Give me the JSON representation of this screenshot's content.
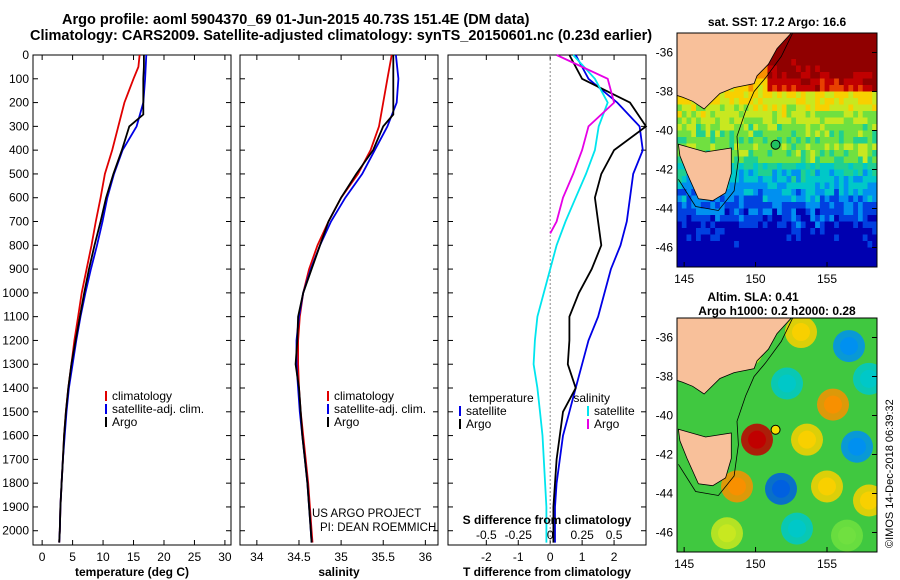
{
  "header": {
    "line1": "Argo profile: aoml 5904370_69 01-Jun-2015 40.73S 151.4E (DM data)",
    "line2": "Climatology: CARS2009. Satellite-adjusted climatology: synTS_20150601.nc (0.23d earlier)"
  },
  "colors": {
    "climatology": "#e00000",
    "satellite": "#0000e6",
    "argo": "#000000",
    "sat_salinity": "#00e5ee",
    "argo_salinity": "#e600e6",
    "land": "#f8c09a"
  },
  "chart_data": [
    {
      "id": "temperature",
      "type": "line",
      "xlabel": "temperature (deg C)",
      "ylabel": "",
      "xlim": [
        -1.5,
        31
      ],
      "ylim": [
        2060,
        0
      ],
      "xticks": [
        0,
        5,
        10,
        15,
        20,
        25,
        30
      ],
      "yticks": [
        0,
        100,
        200,
        300,
        400,
        500,
        600,
        700,
        800,
        900,
        1000,
        1100,
        1200,
        1300,
        1400,
        1500,
        1600,
        1700,
        1800,
        1900,
        2000
      ],
      "legend": {
        "placement": "center-right",
        "entries": [
          "climatology",
          "satellite-adj. clim.",
          "Argo"
        ]
      },
      "series": [
        {
          "name": "climatology",
          "color": "#e00000",
          "x": [
            16.0,
            15.8,
            15.0,
            13.5,
            12.5,
            11.5,
            10.3,
            9.6,
            8.8,
            8.1,
            7.3,
            6.5,
            5.9,
            5.3,
            4.8,
            4.3,
            3.9,
            3.6,
            3.4,
            3.2,
            3.0,
            2.9,
            2.8
          ],
          "y": [
            0,
            50,
            100,
            200,
            300,
            400,
            500,
            600,
            700,
            800,
            900,
            1000,
            1100,
            1200,
            1300,
            1400,
            1500,
            1600,
            1700,
            1800,
            1900,
            2000,
            2050
          ]
        },
        {
          "name": "satellite-adj. clim.",
          "color": "#0000e6",
          "x": [
            17.1,
            17.0,
            16.9,
            16.6,
            15.5,
            13.2,
            11.8,
            10.7,
            9.9,
            9.0,
            8.0,
            7.1,
            6.3,
            5.6,
            5.0,
            4.4,
            4.0,
            3.7,
            3.4,
            3.2,
            3.0,
            2.9,
            2.8
          ],
          "y": [
            0,
            50,
            100,
            200,
            300,
            400,
            500,
            600,
            700,
            800,
            900,
            1000,
            1100,
            1200,
            1300,
            1400,
            1500,
            1600,
            1700,
            1800,
            1900,
            2000,
            2050
          ]
        },
        {
          "name": "Argo",
          "color": "#000000",
          "x": [
            16.7,
            16.7,
            16.6,
            16.6,
            14.3,
            13.1,
            11.7,
            10.5,
            9.6,
            8.6,
            7.7,
            6.9,
            6.2,
            5.5,
            4.8,
            4.3,
            3.9,
            3.6,
            3.4,
            3.2,
            3.0,
            2.9,
            2.8
          ],
          "y": [
            0,
            50,
            100,
            250,
            300,
            400,
            500,
            600,
            700,
            800,
            900,
            1000,
            1100,
            1200,
            1300,
            1400,
            1500,
            1600,
            1700,
            1800,
            1900,
            2000,
            2050
          ]
        }
      ]
    },
    {
      "id": "salinity",
      "type": "line",
      "xlabel": "salinity",
      "ylabel": "",
      "xlim": [
        33.8,
        36.15
      ],
      "ylim": [
        2060,
        0
      ],
      "xticks": [
        34,
        34.5,
        35,
        35.5,
        36
      ],
      "legend": {
        "placement": "center-right",
        "entries": [
          "climatology",
          "satellite-adj. clim.",
          "Argo"
        ]
      },
      "annotations": [
        "US ARGO PROJECT",
        "PI: DEAN ROEMMICH"
      ],
      "series": [
        {
          "name": "climatology",
          "color": "#e00000",
          "x": [
            35.6,
            35.55,
            35.5,
            35.45,
            35.35,
            35.2,
            35.0,
            34.85,
            34.72,
            34.62,
            34.55,
            34.51,
            34.49,
            34.49,
            34.5,
            34.52,
            34.55,
            34.58,
            34.61,
            34.63,
            34.65,
            34.66
          ],
          "y": [
            0,
            100,
            200,
            300,
            400,
            500,
            600,
            700,
            800,
            900,
            1000,
            1100,
            1200,
            1300,
            1400,
            1500,
            1600,
            1700,
            1800,
            1900,
            2000,
            2050
          ]
        },
        {
          "name": "satellite-adj. clim.",
          "color": "#0000e6",
          "x": [
            35.65,
            35.68,
            35.66,
            35.55,
            35.4,
            35.25,
            35.05,
            34.88,
            34.75,
            34.64,
            34.55,
            34.5,
            34.47,
            34.47,
            34.49,
            34.51,
            34.54,
            34.57,
            34.6,
            34.62,
            34.64,
            34.65
          ],
          "y": [
            0,
            100,
            200,
            300,
            400,
            500,
            600,
            700,
            800,
            900,
            1000,
            1100,
            1200,
            1300,
            1400,
            1500,
            1600,
            1700,
            1800,
            1900,
            2000,
            2050
          ]
        },
        {
          "name": "Argo",
          "color": "#000000",
          "x": [
            35.62,
            35.62,
            35.62,
            35.5,
            35.38,
            35.18,
            35.0,
            34.85,
            34.75,
            34.65,
            34.55,
            34.49,
            34.48,
            34.46,
            34.5,
            34.52,
            34.54,
            34.57,
            34.6,
            34.62,
            34.64,
            34.65
          ],
          "y": [
            0,
            100,
            250,
            300,
            400,
            500,
            600,
            700,
            800,
            900,
            1000,
            1100,
            1200,
            1300,
            1400,
            1500,
            1600,
            1700,
            1800,
            1900,
            2000,
            2050
          ]
        }
      ]
    },
    {
      "id": "difference",
      "type": "line",
      "xlabel": "T difference from climatology",
      "top_label": "S difference from climatology",
      "xlim": [
        -3.2,
        3.0
      ],
      "xlim_salinity": [
        -0.8,
        0.75
      ],
      "ylim": [
        2060,
        0
      ],
      "xticks": [
        -2,
        -1,
        0,
        1,
        2
      ],
      "xticks_salinity": [
        "-0.5",
        "-0.25",
        "0",
        "0.25",
        "0.5"
      ],
      "legend": {
        "placement": "center",
        "temperature_title": "temperature",
        "salinity_title": "salinity",
        "entries": [
          "satellite",
          "Argo"
        ]
      },
      "series": [
        {
          "name": "T satellite",
          "color": "#0000e6",
          "x": [
            0.8,
            1.2,
            2.1,
            2.8,
            2.9,
            2.6,
            2.5,
            2.4,
            2.2,
            1.9,
            1.7,
            1.5,
            1.2,
            1.0,
            0.8,
            0.6,
            0.4,
            0.3,
            0.2,
            0.15,
            0.15
          ],
          "y": [
            0,
            100,
            200,
            300,
            400,
            500,
            600,
            700,
            800,
            900,
            1000,
            1100,
            1200,
            1300,
            1400,
            1500,
            1600,
            1700,
            1800,
            1900,
            2050
          ]
        },
        {
          "name": "T Argo",
          "color": "#000000",
          "x": [
            0.6,
            1.0,
            2.5,
            3.0,
            2.0,
            1.6,
            1.4,
            1.5,
            1.6,
            1.3,
            0.9,
            0.6,
            0.6,
            0.55,
            0.8,
            0.4,
            0.3,
            0.2,
            0.15,
            0.1,
            0.1
          ],
          "y": [
            0,
            100,
            200,
            300,
            400,
            500,
            600,
            700,
            800,
            900,
            1000,
            1100,
            1200,
            1300,
            1400,
            1500,
            1600,
            1700,
            1800,
            1900,
            2050
          ]
        },
        {
          "name": "S satellite",
          "color": "#00e5ee",
          "x": [
            0.18,
            0.35,
            0.45,
            0.38,
            0.35,
            0.28,
            0.2,
            0.12,
            0.05,
            0.0,
            -0.05,
            -0.1,
            -0.12,
            -0.13,
            -0.1,
            -0.08,
            -0.06,
            -0.05,
            -0.04,
            -0.03,
            -0.03
          ],
          "y": [
            0,
            100,
            200,
            300,
            400,
            500,
            600,
            700,
            800,
            900,
            1000,
            1100,
            1200,
            1300,
            1400,
            1500,
            1600,
            1700,
            1800,
            1900,
            2050
          ]
        },
        {
          "name": "S Argo",
          "color": "#e600e6",
          "x": [
            0.05,
            0.45,
            0.5,
            0.3,
            0.25,
            0.18,
            0.1,
            0.05,
            0.0
          ],
          "y": [
            0,
            100,
            200,
            300,
            400,
            500,
            600,
            700,
            750
          ]
        }
      ]
    },
    {
      "id": "sst-map",
      "type": "heatmap",
      "title": "sat. SST: 17.2 Argo: 16.6",
      "xticks": [
        "145",
        "150",
        "155"
      ],
      "yticks": [
        "-36",
        "-38",
        "-40",
        "-42",
        "-44",
        "-46"
      ],
      "xlim": [
        144.5,
        158.5
      ],
      "ylim": [
        -47,
        -35
      ],
      "marker": {
        "lon": 151.4,
        "lat": -40.73
      }
    },
    {
      "id": "sla-map",
      "type": "heatmap",
      "title": "Altim. SLA: 0.41",
      "subtitle": "Argo h1000: 0.2 h2000: 0.28",
      "xticks": [
        "145",
        "150",
        "155"
      ],
      "yticks": [
        "-36",
        "-38",
        "-40",
        "-42",
        "-44",
        "-46"
      ],
      "xlim": [
        144.5,
        158.5
      ],
      "ylim": [
        -47,
        -35
      ],
      "marker": {
        "lon": 151.4,
        "lat": -40.73
      }
    }
  ],
  "watermark": "©IMOS 14-Dec-2018 06:39:32"
}
